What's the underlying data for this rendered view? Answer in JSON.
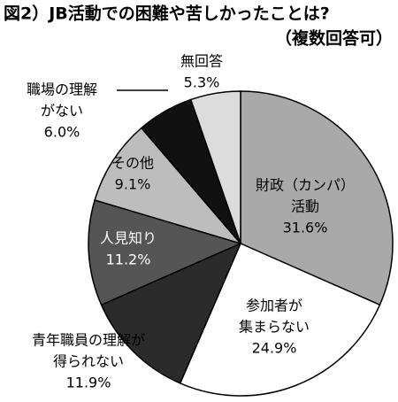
{
  "chart_data": {
    "type": "pie",
    "title": "図2）JB活動での困難や苦しかったことは?",
    "subtitle": "（複数回答可）",
    "categories": [
      [
        "財政（カンパ）",
        "活動"
      ],
      [
        "参加者が",
        "集まらない"
      ],
      [
        "青年職員の理解が",
        "得られない"
      ],
      [
        "人見知り"
      ],
      [
        "その他"
      ],
      [
        "職場の理解",
        "がない"
      ],
      [
        "無回答"
      ]
    ],
    "values": [
      31.6,
      24.9,
      11.9,
      11.2,
      9.1,
      6.0,
      5.3
    ],
    "value_labels": [
      "31.6%",
      "24.9%",
      "11.9%",
      "11.2%",
      "9.1%",
      "6.0%",
      "5.3%"
    ],
    "colors": [
      "#a9a9a9",
      "#ffffff",
      "#2b2b2b",
      "#555555",
      "#bdbdbd",
      "#111111",
      "#dcdcdc"
    ]
  }
}
